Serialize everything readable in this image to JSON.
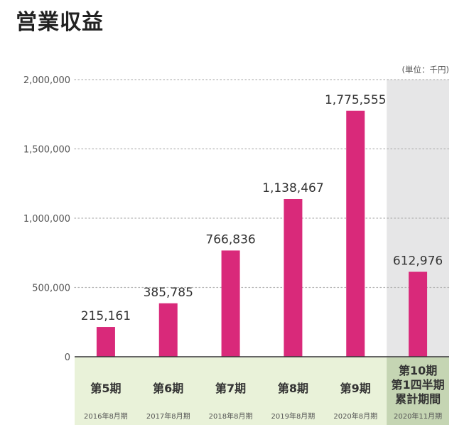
{
  "title": "営業収益",
  "chart_data": {
    "type": "bar",
    "unit": "(単位：千円)",
    "categories": [
      "第5期",
      "第6期",
      "第7期",
      "第8期",
      "第9期",
      "第10期\n第1四半期\n累計期間"
    ],
    "periods": [
      "2016年8月期",
      "2017年8月期",
      "2018年8月期",
      "2019年8月期",
      "2020年8月期",
      "2020年11月期"
    ],
    "values": [
      215161,
      385785,
      766836,
      1138467,
      1775555,
      612976
    ],
    "value_labels": [
      "215,161",
      "385,785",
      "766,836",
      "1,138,467",
      "1,775,555",
      "612,976"
    ],
    "yticks": [
      0,
      500000,
      1000000,
      1500000,
      2000000
    ],
    "ytick_labels": [
      "0",
      "500,000",
      "1,000,000",
      "1,500,000",
      "2,000,000"
    ],
    "ylim": [
      0,
      2000000
    ],
    "grid": true,
    "highlight_last": true,
    "colors": {
      "bar": "#d9297a",
      "label_band": "#e9f2d9",
      "highlight_column": "#e6e6e7",
      "highlight_label_band": "#c5d5b3",
      "grid": "#b3b3b3",
      "axis": "#333333",
      "text": "#333333",
      "muted_text": "#555555"
    }
  }
}
